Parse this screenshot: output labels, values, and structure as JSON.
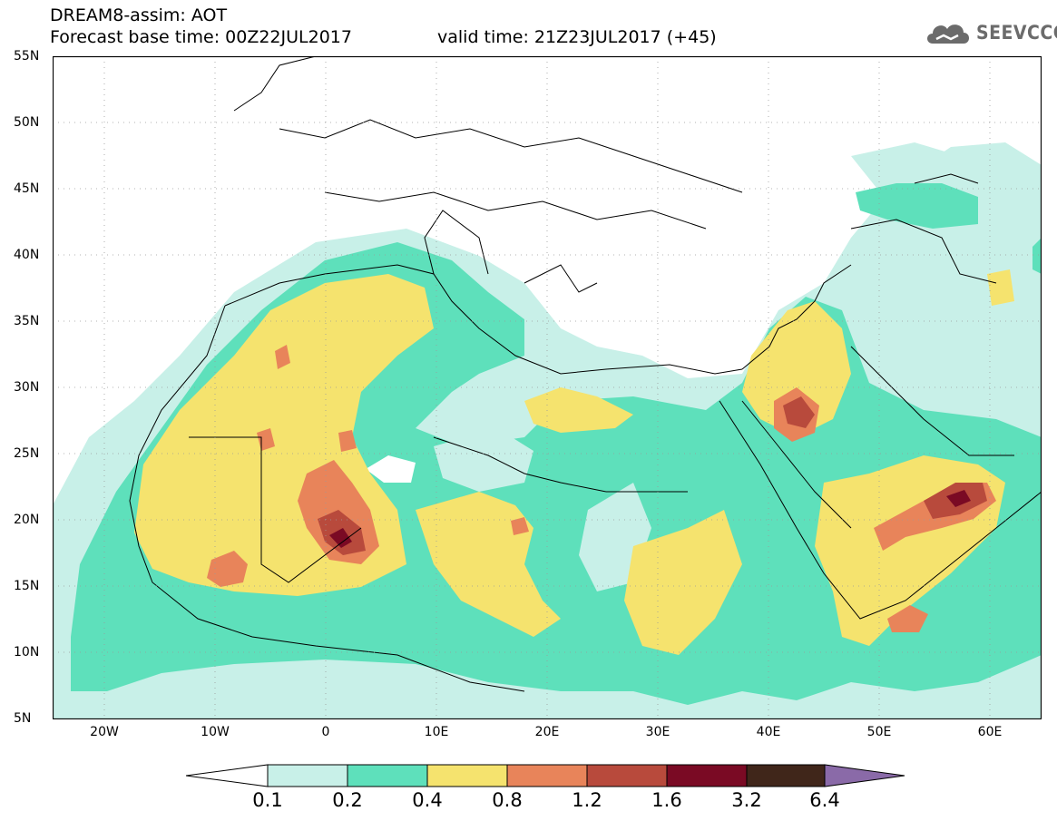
{
  "header": {
    "line1": "DREAM8-assim: AOT",
    "line2": "Forecast base time: 00Z22JUL2017",
    "valid": "valid time: 21Z23JUL2017 (+45)"
  },
  "logo": {
    "text": "SEEVCCC",
    "icon": "cloud-icon"
  },
  "map": {
    "lat_labels": [
      "55N",
      "50N",
      "45N",
      "40N",
      "35N",
      "30N",
      "25N",
      "20N",
      "15N",
      "10N",
      "5N"
    ],
    "lon_labels": [
      "20W",
      "10W",
      "0",
      "10E",
      "20E",
      "30E",
      "40E",
      "50E",
      "60E"
    ]
  },
  "colorbar": {
    "labels": [
      "0.1",
      "0.2",
      "0.4",
      "0.8",
      "1.2",
      "1.6",
      "3.2",
      "6.4"
    ],
    "colors": [
      "#ffffff",
      "#c8f0e8",
      "#5ee0bb",
      "#f5e36e",
      "#e8845a",
      "#b84a3c",
      "#7a0a24",
      "#40261a",
      "#8a6aa8"
    ]
  }
}
